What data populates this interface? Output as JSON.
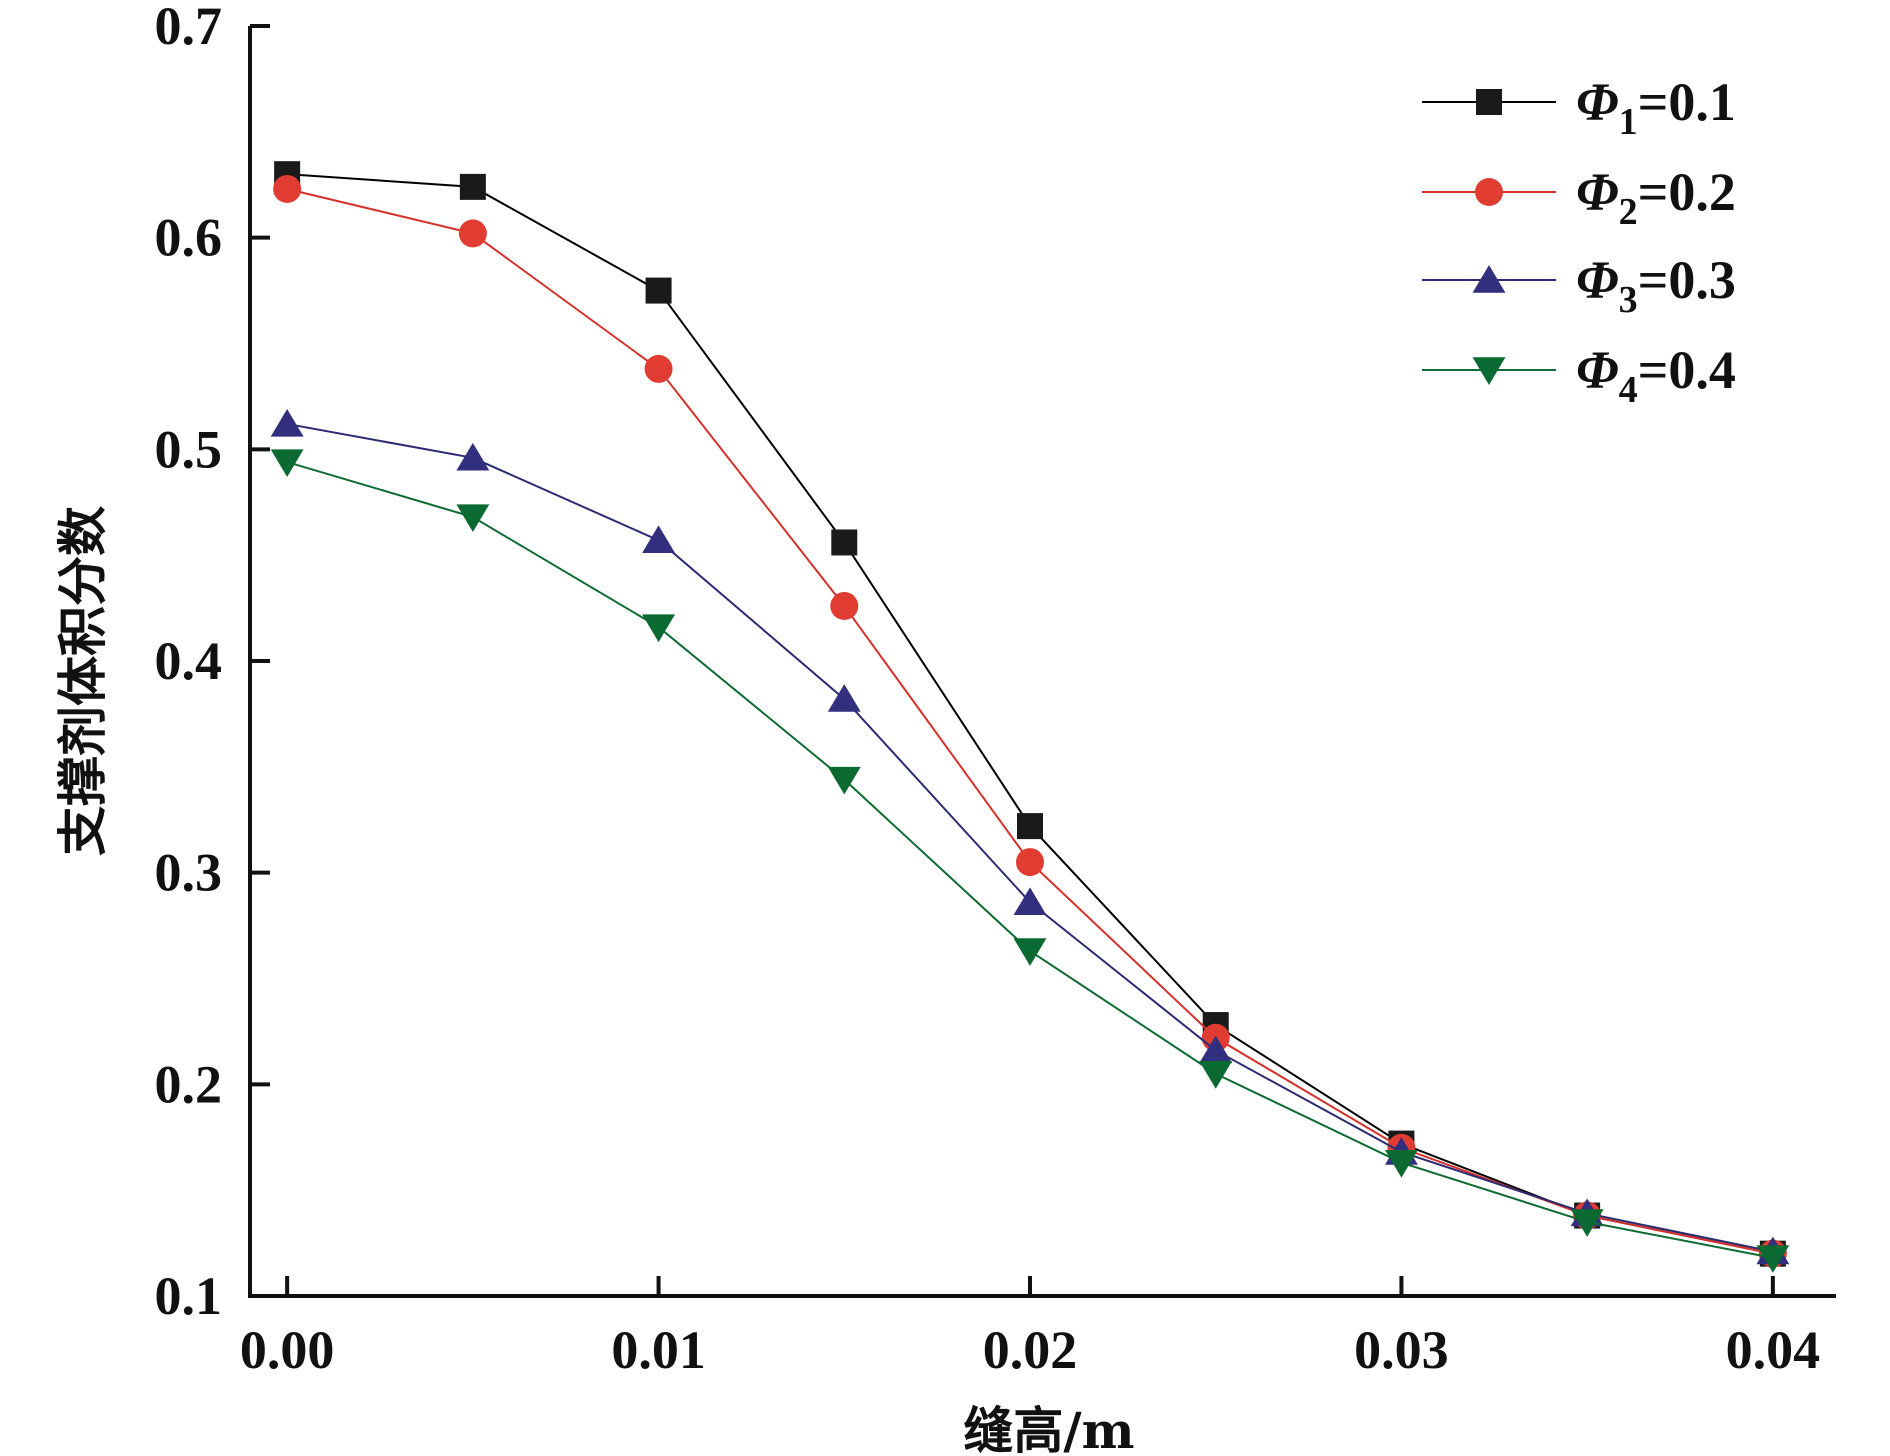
{
  "chart_data": {
    "type": "line",
    "title": "",
    "xlabel": "缝高/m",
    "ylabel": "支撑剂体积分数",
    "x": [
      0.0,
      0.005,
      0.01,
      0.015,
      0.02,
      0.025,
      0.03,
      0.035,
      0.04
    ],
    "xlim": [
      -0.001,
      0.0417
    ],
    "ylim": [
      0.1,
      0.7
    ],
    "xticks": [
      0.0,
      0.01,
      0.02,
      0.03,
      0.04
    ],
    "xtick_labels": [
      "0.00",
      "0.01",
      "0.02",
      "0.03",
      "0.04"
    ],
    "yticks": [
      0.1,
      0.2,
      0.3,
      0.4,
      0.5,
      0.6,
      0.7
    ],
    "ytick_labels": [
      "0.1",
      "0.2",
      "0.3",
      "0.4",
      "0.5",
      "0.6",
      "0.7"
    ],
    "grid": false,
    "legend_position": "top-right",
    "series": [
      {
        "name": "Φ1=0.1",
        "symbol": "Φ",
        "subscript": "1",
        "value_text": "=0.1",
        "color": "#000000",
        "marker_color": "#1a1a1a",
        "marker": "square",
        "values": [
          0.63,
          0.624,
          0.575,
          0.456,
          0.322,
          0.228,
          0.172,
          0.138,
          0.12
        ]
      },
      {
        "name": "Φ2=0.2",
        "symbol": "Φ",
        "subscript": "2",
        "value_text": "=0.2",
        "color": "#d6322b",
        "marker_color": "#e03c32",
        "marker": "circle",
        "values": [
          0.623,
          0.602,
          0.538,
          0.426,
          0.305,
          0.222,
          0.17,
          0.138,
          0.12
        ]
      },
      {
        "name": "Φ3=0.3",
        "symbol": "Φ",
        "subscript": "3",
        "value_text": "=0.3",
        "color": "#2b2a73",
        "marker_color": "#312f7e",
        "marker": "triangle-up",
        "values": [
          0.512,
          0.496,
          0.457,
          0.382,
          0.286,
          0.216,
          0.168,
          0.139,
          0.121
        ]
      },
      {
        "name": "Φ4=0.4",
        "symbol": "Φ",
        "subscript": "4",
        "value_text": "=0.4",
        "color": "#0d6b33",
        "marker_color": "#0b6a31",
        "marker": "triangle-down",
        "values": [
          0.494,
          0.468,
          0.416,
          0.344,
          0.263,
          0.205,
          0.163,
          0.135,
          0.118
        ]
      }
    ]
  }
}
